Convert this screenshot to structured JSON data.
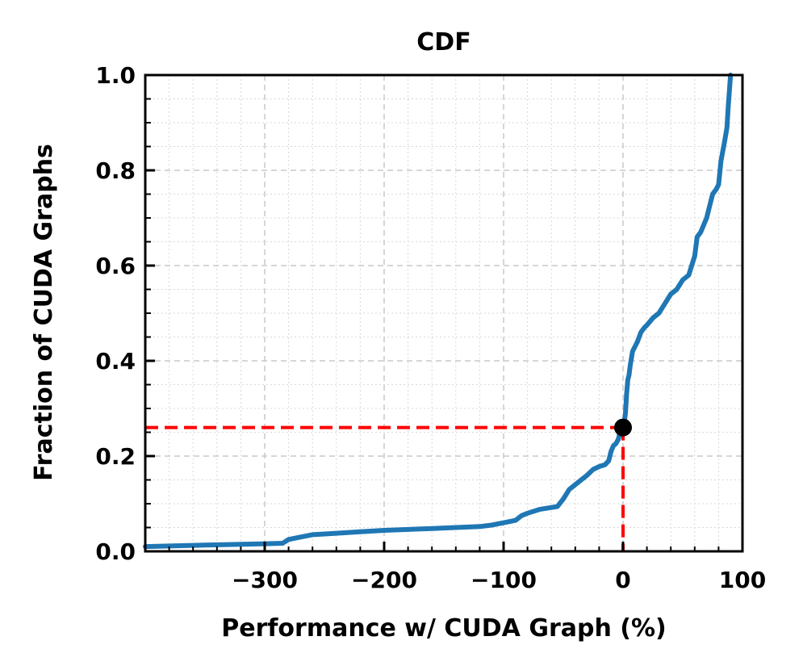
{
  "chart_data": {
    "type": "line",
    "title": "CDF",
    "xlabel": "Performance w/ CUDA Graph (%)",
    "ylabel": "Fraction of CUDA Graphs",
    "xlim": [
      -400,
      100
    ],
    "ylim": [
      0,
      1
    ],
    "x_ticks": [
      -300,
      -200,
      -100,
      0,
      100
    ],
    "x_tick_labels": [
      "−300",
      "−200",
      "−100",
      "0",
      "100"
    ],
    "y_ticks": [
      0,
      0.2,
      0.4,
      0.6,
      0.8,
      1
    ],
    "y_tick_labels": [
      "0.0",
      "0.2",
      "0.4",
      "0.6",
      "0.8",
      "1.0"
    ],
    "grid": true,
    "series": [
      {
        "color": "#1f77b4",
        "x": [
          -400,
          -350,
          -300,
          -285,
          -280,
          -270,
          -260,
          -240,
          -220,
          -200,
          -180,
          -160,
          -140,
          -120,
          -110,
          -100,
          -90,
          -85,
          -80,
          -70,
          -60,
          -55,
          -50,
          -45,
          -40,
          -35,
          -30,
          -25,
          -20,
          -15,
          -12,
          -10,
          -8,
          -6,
          -4,
          -3,
          -2,
          -1,
          0,
          1,
          2,
          3,
          4,
          5,
          6,
          8,
          10,
          12,
          15,
          18,
          20,
          25,
          30,
          35,
          40,
          45,
          50,
          55,
          60,
          62,
          65,
          70,
          75,
          78,
          80,
          82,
          85,
          87,
          88,
          90
        ],
        "y": [
          0.01,
          0.013,
          0.016,
          0.017,
          0.025,
          0.03,
          0.035,
          0.038,
          0.041,
          0.044,
          0.046,
          0.048,
          0.05,
          0.052,
          0.055,
          0.06,
          0.065,
          0.075,
          0.08,
          0.088,
          0.092,
          0.094,
          0.11,
          0.13,
          0.14,
          0.15,
          0.16,
          0.172,
          0.178,
          0.182,
          0.19,
          0.21,
          0.222,
          0.226,
          0.235,
          0.245,
          0.25,
          0.255,
          0.26,
          0.27,
          0.29,
          0.33,
          0.36,
          0.37,
          0.39,
          0.42,
          0.43,
          0.44,
          0.46,
          0.47,
          0.475,
          0.49,
          0.5,
          0.52,
          0.54,
          0.55,
          0.57,
          0.58,
          0.62,
          0.66,
          0.67,
          0.7,
          0.75,
          0.76,
          0.77,
          0.82,
          0.86,
          0.89,
          0.93,
          1.0
        ]
      }
    ],
    "marker_point": {
      "x": 0,
      "y": 0.26,
      "color": "#000000"
    },
    "guide_color": "#ff0000"
  }
}
